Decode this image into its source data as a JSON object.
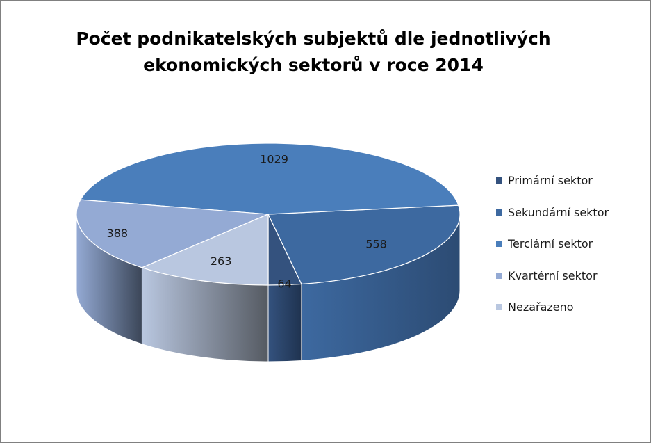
{
  "chart_data": {
    "type": "pie",
    "title_lines": [
      "Počet podnikatelských subjektů  dle jednotlivých",
      "ekonomických sektorů v roce 2014"
    ],
    "categories": [
      "Primární sektor",
      "Sekundární sektor",
      "Terciární sektor",
      "Kvartérní sektor",
      "Nezařazeno"
    ],
    "values": [
      64,
      558,
      1029,
      388,
      263
    ],
    "colors": [
      "#34527e",
      "#3d69a0",
      "#4a7ebb",
      "#94aad4",
      "#b9c7e0"
    ],
    "side_colors": [
      "#1f3350",
      "#2c4b73",
      "#34598a",
      "#3b4658",
      "#555a62"
    ],
    "legend_position": "right",
    "style": "3d"
  }
}
